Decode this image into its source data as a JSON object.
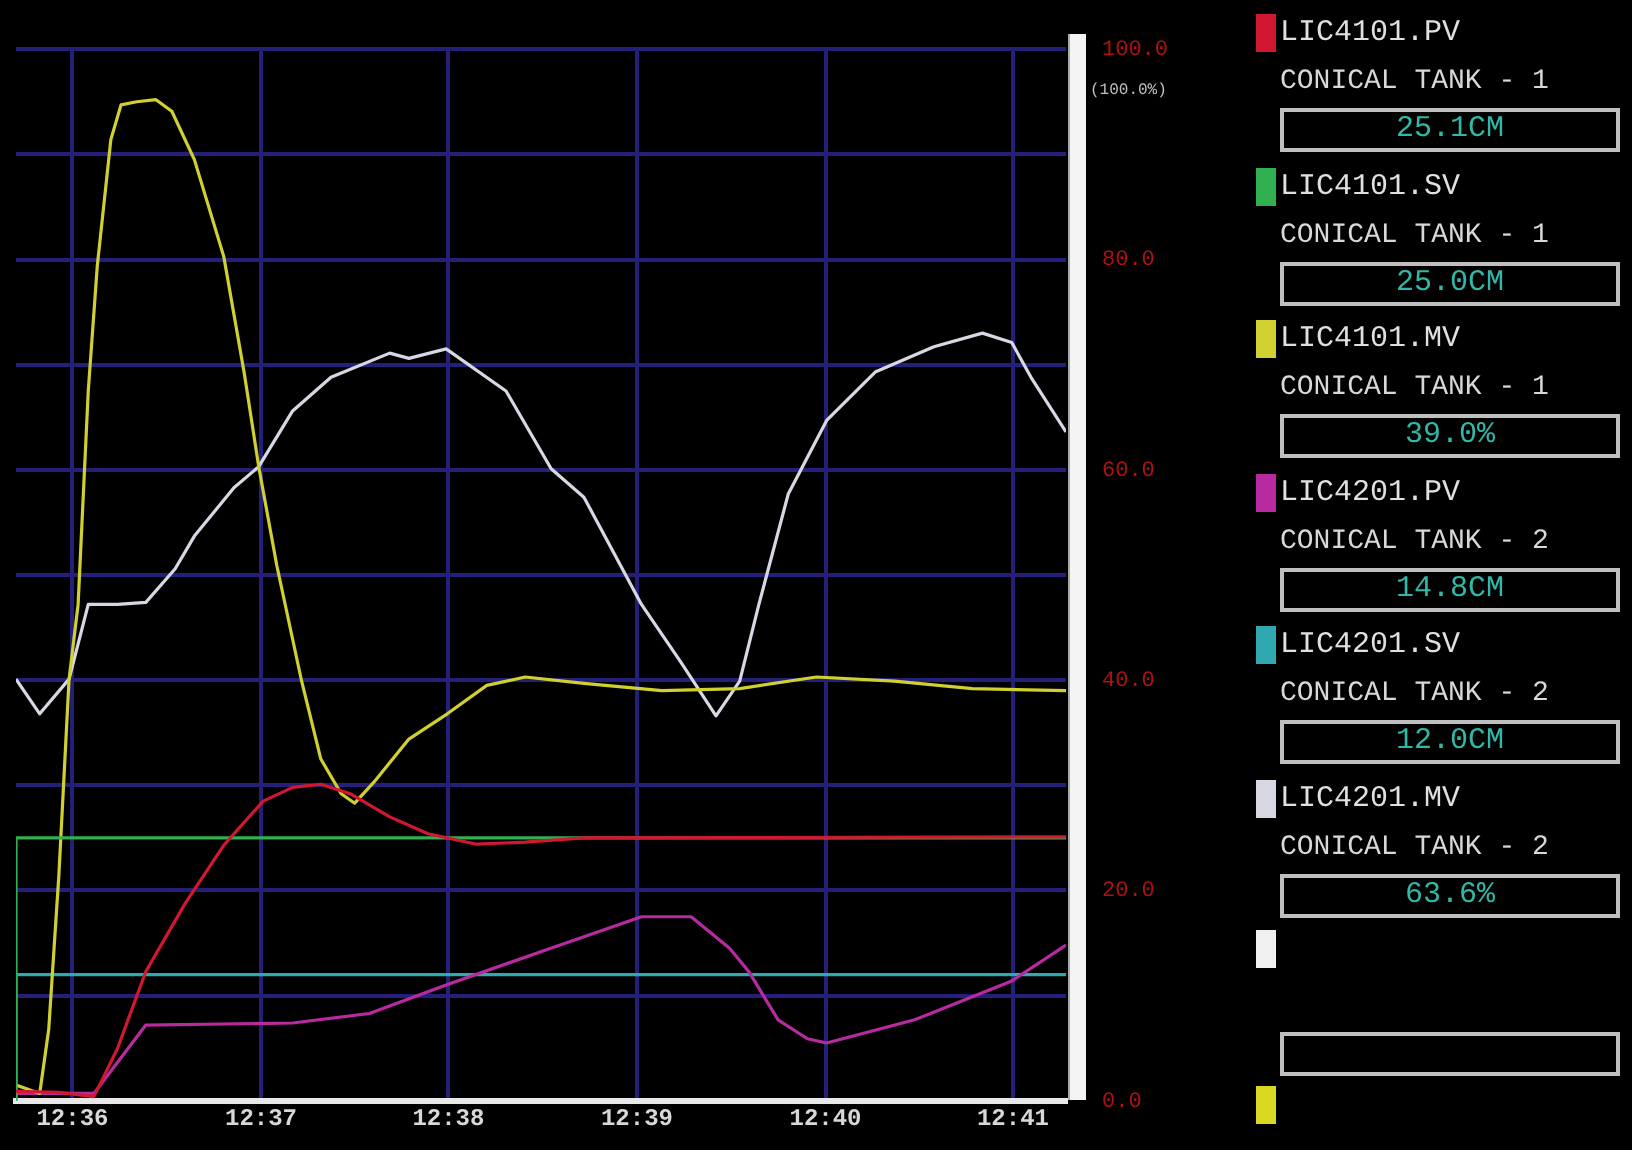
{
  "chart_data": {
    "type": "line",
    "xlim": [
      12.595,
      12.688
    ],
    "ylim": [
      0,
      100
    ],
    "xticks": [
      {
        "value": 12.6,
        "label": "12:36"
      },
      {
        "value": 12.6167,
        "label": "12:37"
      },
      {
        "value": 12.6333,
        "label": "12:38"
      },
      {
        "value": 12.65,
        "label": "12:39"
      },
      {
        "value": 12.6667,
        "label": "12:40"
      },
      {
        "value": 12.6833,
        "label": "12:41"
      }
    ],
    "yticks": [
      {
        "value": 0,
        "label": "0.0"
      },
      {
        "value": 10,
        "label": null
      },
      {
        "value": 20,
        "label": "20.0"
      },
      {
        "value": 30,
        "label": null
      },
      {
        "value": 40,
        "label": "40.0"
      },
      {
        "value": 50,
        "label": null
      },
      {
        "value": 60,
        "label": "60.0"
      },
      {
        "value": 70,
        "label": null
      },
      {
        "value": 80,
        "label": "80.0"
      },
      {
        "value": 90,
        "label": null
      },
      {
        "value": 100,
        "label": "100.0"
      }
    ],
    "grid": true,
    "legend": "right",
    "series": [
      {
        "name": "LIC4101.PV",
        "color": "#d01830",
        "x": [
          12.595,
          12.5988,
          12.6019,
          12.604,
          12.6065,
          12.61,
          12.6134,
          12.6169,
          12.6195,
          12.622,
          12.6246,
          12.6281,
          12.6315,
          12.6358,
          12.6401,
          12.6453,
          12.688
        ],
        "values": [
          0.9,
          0.8,
          0.4,
          5.0,
          12.3,
          18.8,
          24.3,
          28.5,
          29.8,
          30.1,
          29.2,
          27.0,
          25.4,
          24.4,
          24.6,
          25.0,
          25.1
        ]
      },
      {
        "name": "LIC4101.SV",
        "color": "#30b050",
        "type": "step",
        "x": [
          12.595,
          12.5971,
          12.688
        ],
        "values": [
          0,
          25.0,
          25.0
        ]
      },
      {
        "name": "LIC4101.MV",
        "color": "#d0d030",
        "x": [
          12.595,
          12.5971,
          12.5979,
          12.5988,
          12.5997,
          12.6005,
          12.6014,
          12.6022,
          12.6034,
          12.6043,
          12.6057,
          12.6074,
          12.6088,
          12.6108,
          12.6134,
          12.6152,
          12.6165,
          12.6181,
          12.6203,
          12.622,
          12.6238,
          12.625,
          12.6267,
          12.6298,
          12.6332,
          12.6367,
          12.6401,
          12.6453,
          12.6522,
          12.6591,
          12.6659,
          12.6728,
          12.6797,
          12.688
        ],
        "values": [
          1.5,
          0.7,
          6.8,
          21.5,
          40.1,
          47.2,
          67.5,
          79.4,
          91.4,
          94.7,
          95.0,
          95.2,
          94.1,
          89.5,
          80.3,
          69.3,
          60.3,
          50.9,
          39.9,
          32.5,
          29.2,
          28.3,
          30.3,
          34.4,
          36.8,
          39.5,
          40.3,
          39.7,
          39.0,
          39.2,
          40.3,
          39.9,
          39.2,
          39.0
        ]
      },
      {
        "name": "LIC4201.PV",
        "color": "#b82aa0",
        "x": [
          12.595,
          12.6019,
          12.6065,
          12.6195,
          12.6263,
          12.6331,
          12.6418,
          12.6453,
          12.6504,
          12.6548,
          12.6582,
          12.6599,
          12.6625,
          12.6651,
          12.6668,
          12.6746,
          12.6832,
          12.688
        ],
        "values": [
          0.7,
          0.7,
          7.2,
          7.4,
          8.3,
          11.0,
          14.3,
          15.6,
          17.5,
          17.5,
          14.5,
          12.3,
          7.7,
          5.9,
          5.5,
          7.7,
          11.4,
          14.8
        ]
      },
      {
        "name": "LIC4201.SV",
        "color": "#30a8b0",
        "type": "step",
        "x": [
          12.595,
          12.5998,
          12.688
        ],
        "values": [
          0,
          12.0,
          12.0
        ]
      },
      {
        "name": "LIC4201.MV",
        "color": "#d8d8e4",
        "x": [
          12.595,
          12.5971,
          12.5997,
          12.6014,
          12.604,
          12.6065,
          12.6091,
          12.6108,
          12.6143,
          12.6165,
          12.6195,
          12.6229,
          12.6281,
          12.6298,
          12.6331,
          12.6384,
          12.6424,
          12.6453,
          12.6504,
          12.6539,
          12.657,
          12.6591,
          12.6608,
          12.6634,
          12.6668,
          12.6711,
          12.6763,
          12.6806,
          12.6832,
          12.6849,
          12.688
        ],
        "values": [
          40.1,
          36.8,
          40.1,
          47.2,
          47.2,
          47.4,
          50.6,
          53.7,
          58.3,
          60.3,
          65.6,
          68.8,
          71.1,
          70.6,
          71.5,
          67.5,
          60.1,
          57.4,
          47.2,
          41.7,
          36.6,
          39.9,
          47.2,
          57.7,
          64.7,
          69.3,
          71.7,
          73.0,
          72.1,
          68.8,
          63.6
        ]
      }
    ],
    "annotations": [
      "CONICAL TANK - 1",
      "25.1CM",
      "CONICAL TANK - 1",
      "25.0CM",
      "CONICAL TANK - 1",
      "39.0%",
      "CONICAL TANK - 2",
      "14.8CM",
      "CONICAL TANK - 2",
      "12.0CM",
      "CONICAL TANK - 2",
      "63.6%",
      "(100.0%)"
    ]
  }
}
